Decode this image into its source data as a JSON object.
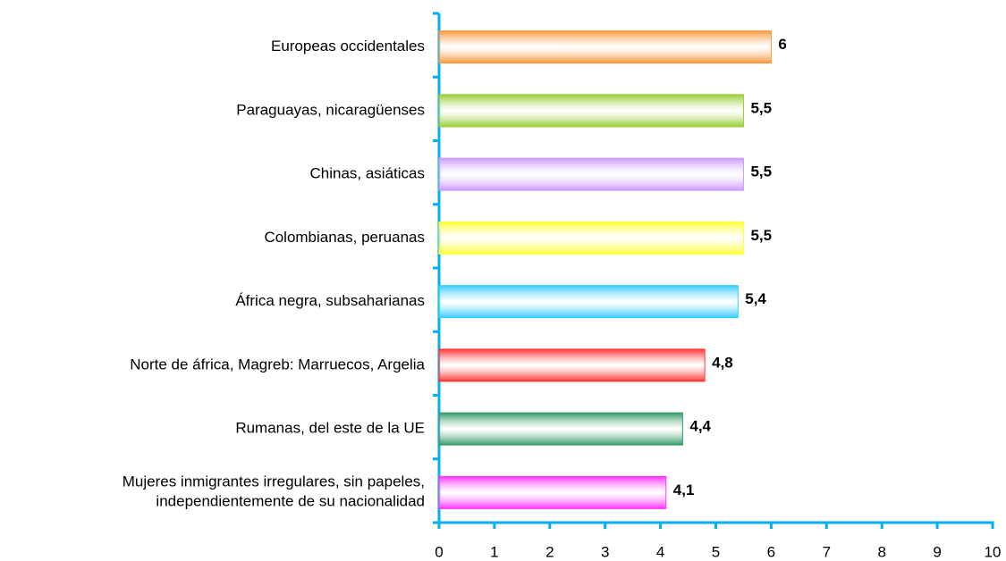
{
  "chart_data": {
    "type": "bar",
    "orientation": "horizontal",
    "categories": [
      "Europeas occidentales",
      "Paraguayas, nicaragüenses",
      "Chinas, asiáticas",
      "Colombianas, peruanas",
      "África negra, subsaharianas",
      "Norte de áfrica, Magreb: Marruecos, Argelia",
      "Rumanas, del este de la UE",
      "Mujeres inmigrantes irregulares, sin papeles,\nindependientemente de su nacionalidad"
    ],
    "values": [
      6,
      5.5,
      5.5,
      5.5,
      5.4,
      4.8,
      4.4,
      4.1
    ],
    "value_labels": [
      "6",
      "5,5",
      "5,5",
      "5,5",
      "5,4",
      "4,8",
      "4,4",
      "4,1"
    ],
    "colors": [
      "#f7963c",
      "#9acd32",
      "#cc99ff",
      "#ffff33",
      "#33ccff",
      "#ff3333",
      "#339966",
      "#ff33ff"
    ],
    "xlim": [
      0,
      10
    ],
    "xticks": [
      0,
      1,
      2,
      3,
      4,
      5,
      6,
      7,
      8,
      9,
      10
    ],
    "grid": false,
    "axis_color": "#00b0f0"
  }
}
